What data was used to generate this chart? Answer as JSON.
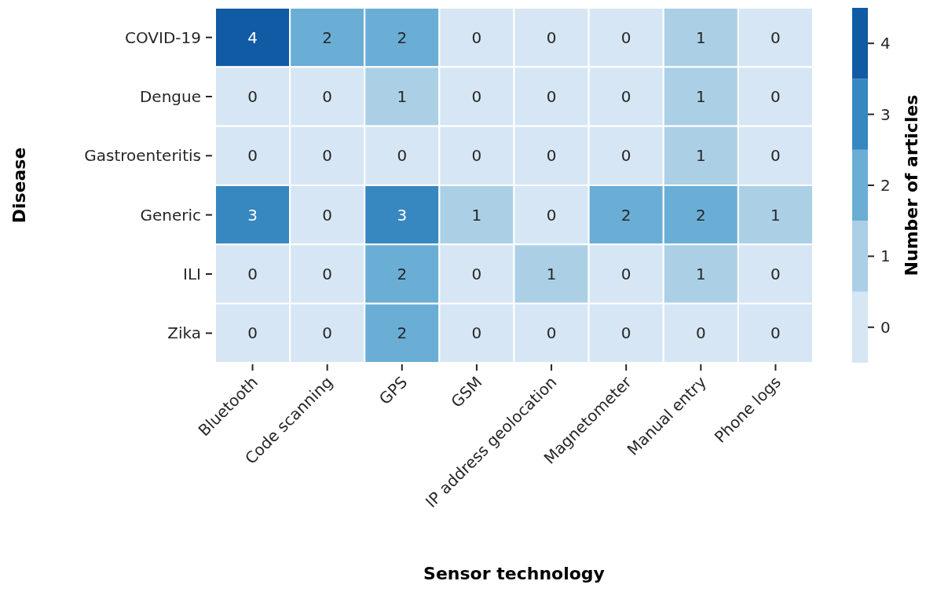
{
  "chart_data": {
    "type": "heatmap",
    "xlabel": "Sensor technology",
    "ylabel": "Disease",
    "clabel": "Number of articles",
    "categories": [
      "Bluetooth",
      "Code scanning",
      "GPS",
      "GSM",
      "IP address geolocation",
      "Magnetometer",
      "Manual entry",
      "Phone logs"
    ],
    "y_categories": [
      "COVID-19",
      "Dengue",
      "Gastroenteritis",
      "Generic",
      "ILI",
      "Zika"
    ],
    "cells": [
      [
        4,
        2,
        2,
        0,
        0,
        0,
        1,
        0
      ],
      [
        0,
        0,
        1,
        0,
        0,
        0,
        1,
        0
      ],
      [
        0,
        0,
        0,
        0,
        0,
        0,
        1,
        0
      ],
      [
        3,
        0,
        3,
        1,
        0,
        2,
        2,
        1
      ],
      [
        0,
        0,
        2,
        0,
        1,
        0,
        1,
        0
      ],
      [
        0,
        0,
        2,
        0,
        0,
        0,
        0,
        0
      ]
    ],
    "data_labels": true,
    "clim": [
      -0.5,
      4.5
    ],
    "cticks": [
      0,
      1,
      2,
      3,
      4
    ],
    "colors": [
      "#d6e6f4",
      "#abd0e6",
      "#6aaed6",
      "#3787c0",
      "#105ba4"
    ]
  }
}
